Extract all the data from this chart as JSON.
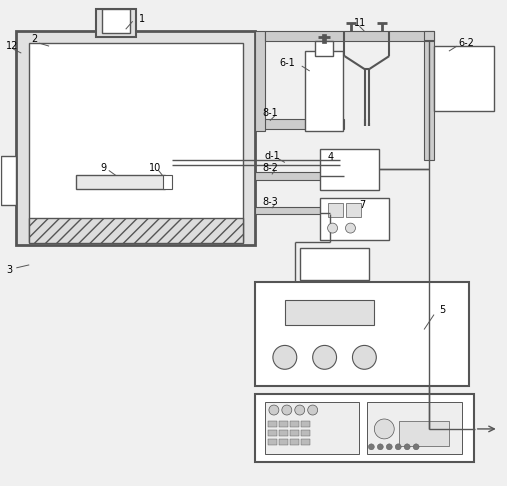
{
  "bg_color": "#f0f0f0",
  "line_color": "#555555",
  "fill_color": "#ffffff",
  "gray_fill": "#cccccc",
  "dark_gray": "#999999",
  "figsize": [
    5.07,
    4.86
  ],
  "dpi": 100
}
